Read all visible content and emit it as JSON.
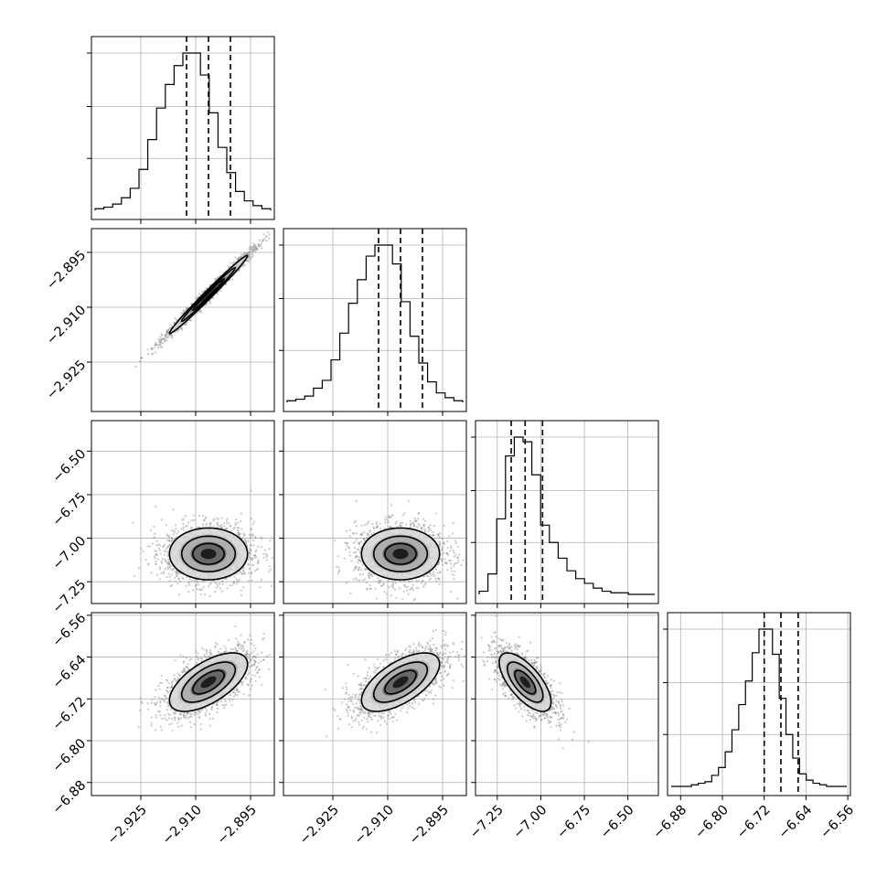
{
  "chart_data": {
    "type": "corner",
    "grid": true,
    "parameters": [
      {
        "range": [
          -2.9385,
          -2.8885
        ],
        "ticks": [
          -2.925,
          -2.91,
          -2.895
        ],
        "tick_labels": [
          "−2.925",
          "−2.910",
          "−2.895"
        ],
        "mean": -2.9065,
        "sd": 0.0061,
        "quantiles": [
          -2.9125,
          -2.9065,
          -2.9005
        ]
      },
      {
        "range": [
          -2.9385,
          -2.8885
        ],
        "ticks": [
          -2.925,
          -2.91,
          -2.895
        ],
        "tick_labels": [
          "−2.925",
          "−2.910",
          "−2.895"
        ],
        "mean": -2.9065,
        "sd": 0.0061,
        "quantiles": [
          -2.9125,
          -2.9065,
          -2.9005
        ]
      },
      {
        "range": [
          -7.375,
          -6.325
        ],
        "ticks": [
          -7.25,
          -7.0,
          -6.75,
          -6.5
        ],
        "tick_labels": [
          "−7.25",
          "−7.00",
          "−6.75",
          "−6.50"
        ],
        "mean": -7.09,
        "sd": 0.085,
        "quantiles": [
          -7.17,
          -7.09,
          -6.99
        ]
      },
      {
        "range": [
          -6.905,
          -6.555
        ],
        "ticks": [
          -6.88,
          -6.8,
          -6.72,
          -6.64,
          -6.56
        ],
        "tick_labels": [
          "−6.88",
          "−6.80",
          "−6.72",
          "−6.64",
          "−6.56"
        ],
        "mean": -6.688,
        "sd": 0.032,
        "quantiles": [
          -6.72,
          -6.688,
          -6.655
        ]
      }
    ],
    "histograms": [
      [
        1,
        2,
        4,
        8,
        14,
        26,
        45,
        65,
        80,
        92,
        100,
        100,
        86,
        62,
        40,
        24,
        12,
        6,
        3,
        1
      ],
      [
        1,
        2,
        4,
        9,
        14,
        27,
        44,
        63,
        78,
        93,
        100,
        100,
        88,
        64,
        42,
        25,
        13,
        6,
        3,
        1
      ],
      [
        2,
        13,
        48,
        88,
        100,
        97,
        76,
        44,
        33,
        23,
        15,
        10,
        7,
        4,
        2,
        1,
        1,
        0,
        0,
        0
      ],
      [
        0,
        0,
        0,
        1,
        2,
        3,
        7,
        12,
        22,
        36,
        52,
        67,
        85,
        100,
        100,
        84,
        56,
        33,
        18,
        8,
        4,
        2,
        1,
        0,
        0,
        0
      ]
    ],
    "correlations": {
      "1-0": 0.99,
      "2-0": 0.0,
      "2-1": 0.0,
      "3-0": 0.62,
      "3-1": 0.62,
      "3-2": -0.68
    }
  }
}
